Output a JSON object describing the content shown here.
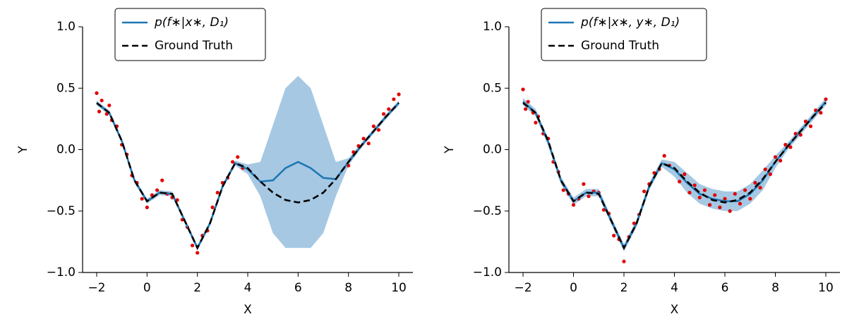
{
  "chart_data": [
    {
      "type": "line",
      "xlabel": "X",
      "ylabel": "Y",
      "xlim": [
        -2.56,
        10.56
      ],
      "ylim": [
        -1,
        1
      ],
      "xticks": [
        {
          "value": -2,
          "label": "−2"
        },
        0,
        2,
        4,
        6,
        8,
        10
      ],
      "yticks": [
        {
          "value": -1,
          "label": "−1.0"
        },
        {
          "value": -0.5,
          "label": "−0.5"
        },
        {
          "value": 0,
          "label": "0.0"
        },
        0.5,
        {
          "value": 1,
          "label": "1.0"
        }
      ],
      "x": [
        -2,
        -1.5,
        -1,
        -0.5,
        0,
        0.5,
        1,
        1.5,
        2,
        2.5,
        3,
        3.5,
        4,
        4.5,
        5,
        5.5,
        6,
        6.5,
        7,
        7.5,
        8,
        8.5,
        9,
        9.5,
        10
      ],
      "series": [
        {
          "name": "p(f∗|x∗, D₁)",
          "color": "#1f77b4",
          "style": "solid",
          "values": [
            0.38,
            0.3,
            0.07,
            -0.25,
            -0.42,
            -0.35,
            -0.36,
            -0.58,
            -0.8,
            -0.6,
            -0.3,
            -0.11,
            -0.16,
            -0.26,
            -0.25,
            -0.15,
            -0.1,
            -0.15,
            -0.23,
            -0.24,
            -0.1,
            0.03,
            0.15,
            0.27,
            0.38
          ]
        },
        {
          "name": "Ground Truth",
          "color": "#000000",
          "style": "dashed",
          "values": [
            0.38,
            0.3,
            0.07,
            -0.25,
            -0.42,
            -0.35,
            -0.36,
            -0.58,
            -0.8,
            -0.6,
            -0.3,
            -0.11,
            -0.15,
            -0.26,
            -0.35,
            -0.41,
            -0.43,
            -0.41,
            -0.35,
            -0.24,
            -0.1,
            0.03,
            0.15,
            0.27,
            0.38
          ]
        }
      ],
      "band_color": "#a6c8e3",
      "band_lower": [
        0.36,
        0.28,
        0.05,
        -0.27,
        -0.44,
        -0.37,
        -0.38,
        -0.6,
        -0.82,
        -0.62,
        -0.32,
        -0.13,
        -0.2,
        -0.38,
        -0.68,
        -0.8,
        -0.8,
        -0.8,
        -0.68,
        -0.38,
        -0.13,
        0.01,
        0.13,
        0.25,
        0.36
      ],
      "band_upper": [
        0.4,
        0.32,
        0.09,
        -0.23,
        -0.4,
        -0.33,
        -0.34,
        -0.56,
        -0.78,
        -0.58,
        -0.28,
        -0.09,
        -0.12,
        -0.1,
        0.2,
        0.5,
        0.6,
        0.5,
        0.2,
        -0.1,
        -0.07,
        0.05,
        0.17,
        0.29,
        0.4
      ],
      "points": {
        "color": "#e00000",
        "x": [
          -2,
          -1.9,
          -1.8,
          -1.6,
          -1.5,
          -1.4,
          -1.2,
          -1,
          -0.8,
          -0.6,
          -0.4,
          -0.2,
          0,
          0.2,
          0.4,
          0.6,
          0.8,
          1,
          1.2,
          1.4,
          1.6,
          1.8,
          2,
          2.2,
          2.4,
          2.6,
          2.8,
          3,
          3.2,
          3.4,
          3.6,
          3.8,
          8,
          8.2,
          8.4,
          8.6,
          8.8,
          9,
          9.2,
          9.4,
          9.6,
          9.8,
          10
        ],
        "y": [
          0.46,
          0.31,
          0.4,
          0.29,
          0.36,
          0.24,
          0.19,
          0.04,
          -0.04,
          -0.21,
          -0.27,
          -0.4,
          -0.47,
          -0.37,
          -0.33,
          -0.25,
          -0.36,
          -0.39,
          -0.41,
          -0.57,
          -0.63,
          -0.78,
          -0.84,
          -0.7,
          -0.66,
          -0.47,
          -0.35,
          -0.27,
          -0.23,
          -0.1,
          -0.06,
          -0.15,
          -0.13,
          -0.02,
          0.03,
          0.09,
          0.05,
          0.19,
          0.16,
          0.29,
          0.33,
          0.41,
          0.45
        ]
      }
    },
    {
      "type": "line",
      "xlabel": "X",
      "ylabel": "Y",
      "xlim": [
        -2.56,
        10.56
      ],
      "ylim": [
        -1,
        1
      ],
      "xticks": [
        {
          "value": -2,
          "label": "−2"
        },
        0,
        2,
        4,
        6,
        8,
        10
      ],
      "yticks": [
        {
          "value": -1,
          "label": "−1.0"
        },
        {
          "value": -0.5,
          "label": "−0.5"
        },
        {
          "value": 0,
          "label": "0.0"
        },
        0.5,
        {
          "value": 1,
          "label": "1.0"
        }
      ],
      "x": [
        -2,
        -1.5,
        -1,
        -0.5,
        0,
        0.5,
        1,
        1.5,
        2,
        2.5,
        3,
        3.5,
        4,
        4.5,
        5,
        5.5,
        6,
        6.5,
        7,
        7.5,
        8,
        8.5,
        9,
        9.5,
        10
      ],
      "series": [
        {
          "name": "p(f∗|x∗, y∗, D₁)",
          "color": "#1f77b4",
          "style": "solid",
          "values": [
            0.39,
            0.3,
            0.06,
            -0.25,
            -0.42,
            -0.35,
            -0.35,
            -0.58,
            -0.8,
            -0.6,
            -0.3,
            -0.11,
            -0.16,
            -0.27,
            -0.36,
            -0.4,
            -0.42,
            -0.42,
            -0.36,
            -0.25,
            -0.1,
            0.03,
            0.15,
            0.27,
            0.39
          ]
        },
        {
          "name": "Ground Truth",
          "color": "#000000",
          "style": "dashed",
          "values": [
            0.38,
            0.3,
            0.07,
            -0.25,
            -0.42,
            -0.35,
            -0.36,
            -0.58,
            -0.8,
            -0.6,
            -0.3,
            -0.11,
            -0.15,
            -0.26,
            -0.35,
            -0.41,
            -0.43,
            -0.41,
            -0.35,
            -0.24,
            -0.1,
            0.03,
            0.15,
            0.27,
            0.38
          ]
        }
      ],
      "band_color": "#a6c8e3",
      "band_lower": [
        0.36,
        0.27,
        0.03,
        -0.28,
        -0.45,
        -0.38,
        -0.38,
        -0.61,
        -0.83,
        -0.63,
        -0.33,
        -0.14,
        -0.22,
        -0.35,
        -0.44,
        -0.48,
        -0.5,
        -0.5,
        -0.44,
        -0.33,
        -0.15,
        0,
        0.12,
        0.24,
        0.36
      ],
      "band_upper": [
        0.42,
        0.33,
        0.09,
        -0.22,
        -0.39,
        -0.32,
        -0.32,
        -0.55,
        -0.77,
        -0.57,
        -0.27,
        -0.08,
        -0.1,
        -0.19,
        -0.28,
        -0.32,
        -0.34,
        -0.34,
        -0.28,
        -0.17,
        -0.05,
        0.06,
        0.18,
        0.3,
        0.42
      ],
      "points": {
        "color": "#e00000",
        "x": [
          -2,
          -1.9,
          -1.8,
          -1.6,
          -1.5,
          -1.4,
          -1.2,
          -1,
          -0.8,
          -0.6,
          -0.4,
          -0.2,
          0,
          0.2,
          0.4,
          0.6,
          0.8,
          1,
          1.2,
          1.4,
          1.6,
          1.8,
          2,
          2.2,
          2.4,
          2.6,
          2.8,
          3,
          3.2,
          3.4,
          3.6,
          3.8,
          4.2,
          4.4,
          4.6,
          4.8,
          5,
          5.2,
          5.4,
          5.6,
          5.8,
          6,
          6.2,
          6.4,
          6.6,
          6.8,
          7,
          7.2,
          7.4,
          7.6,
          7.8,
          8,
          8.2,
          8.4,
          8.6,
          8.8,
          9,
          9.2,
          9.4,
          9.6,
          9.8,
          10
        ],
        "y": [
          0.49,
          0.33,
          0.39,
          0.3,
          0.22,
          0.27,
          0.13,
          0.09,
          -0.1,
          -0.18,
          -0.33,
          -0.36,
          -0.45,
          -0.4,
          -0.28,
          -0.38,
          -0.34,
          -0.35,
          -0.49,
          -0.52,
          -0.7,
          -0.73,
          -0.91,
          -0.71,
          -0.6,
          -0.53,
          -0.34,
          -0.28,
          -0.19,
          -0.16,
          -0.05,
          -0.13,
          -0.26,
          -0.2,
          -0.35,
          -0.29,
          -0.39,
          -0.33,
          -0.45,
          -0.37,
          -0.47,
          -0.4,
          -0.5,
          -0.36,
          -0.44,
          -0.33,
          -0.4,
          -0.27,
          -0.31,
          -0.16,
          -0.2,
          -0.06,
          -0.09,
          0.04,
          0.02,
          0.13,
          0.12,
          0.23,
          0.19,
          0.32,
          0.3,
          0.41
        ]
      }
    }
  ]
}
